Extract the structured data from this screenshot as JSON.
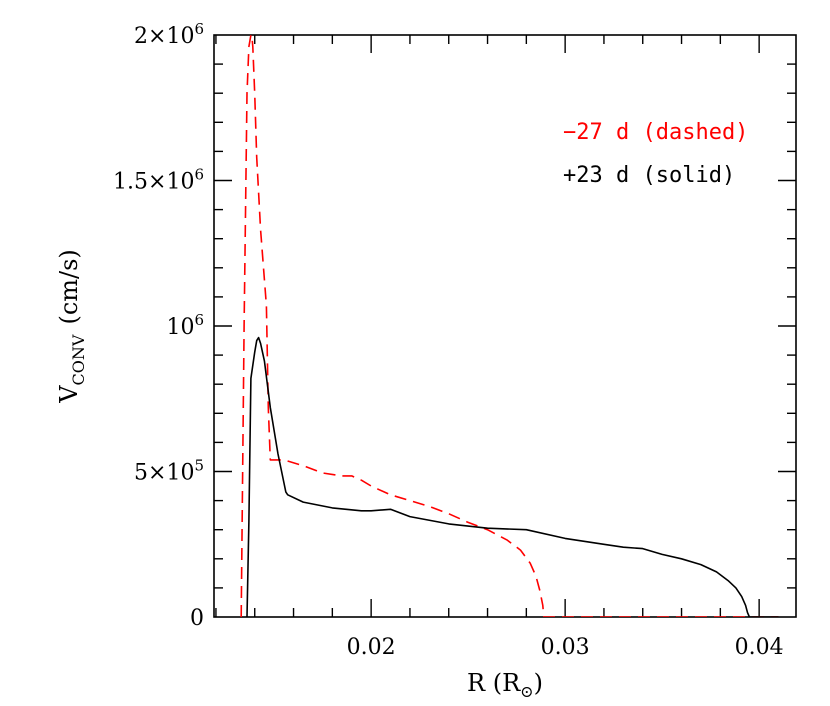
{
  "chart_data": {
    "type": "line",
    "title": "",
    "xlabel": "R (R",
    "xlabel_sub": "⊙",
    "xlabel_close": ")",
    "ylabel": "V",
    "ylabel_sub": "CONV",
    "ylabel_unit": "(cm/s)",
    "xlim": [
      0.0119,
      0.0419
    ],
    "ylim": [
      0,
      2000000
    ],
    "x_ticks": [
      {
        "value": 0.02,
        "label": "0.02"
      },
      {
        "value": 0.03,
        "label": "0.03"
      },
      {
        "value": 0.04,
        "label": "0.04"
      }
    ],
    "y_ticks": [
      {
        "value": 0,
        "label": "0",
        "mantissa": "",
        "exp": ""
      },
      {
        "value": 500000,
        "label": "5×10",
        "exp": "5"
      },
      {
        "value": 1000000,
        "label": "10",
        "exp": "6"
      },
      {
        "value": 1500000,
        "label": "1.5×10",
        "exp": "6"
      },
      {
        "value": 2000000,
        "label": "2×10",
        "exp": "6"
      }
    ],
    "grid": false,
    "legend_position": "top-right",
    "series": [
      {
        "name": "−27 d (dashed)",
        "color": "#ff0000",
        "dash": true,
        "x": [
          0.0133,
          0.01345,
          0.0136,
          0.0137,
          0.0138,
          0.01385,
          0.0139,
          0.014,
          0.0141,
          0.0143,
          0.0146,
          0.0147,
          0.0148,
          0.0155,
          0.0165,
          0.0175,
          0.0185,
          0.019,
          0.0195,
          0.02,
          0.021,
          0.022,
          0.023,
          0.024,
          0.025,
          0.026,
          0.027,
          0.0277,
          0.0282,
          0.0285,
          0.0287,
          0.02885,
          0.0289,
          0.0295,
          0.035,
          0.041
        ],
        "y": [
          0,
          1000000,
          1800000,
          1960000,
          2000000,
          2000000,
          1960000,
          1800000,
          1580000,
          1330000,
          1070000,
          720000,
          540000,
          540000,
          520000,
          495000,
          485000,
          485000,
          470000,
          450000,
          420000,
          400000,
          380000,
          355000,
          325000,
          300000,
          265000,
          230000,
          185000,
          140000,
          90000,
          40000,
          0,
          0,
          0,
          0
        ]
      },
      {
        "name": "+23 d (solid)",
        "color": "#000000",
        "dash": false,
        "x": [
          0.0136,
          0.0137,
          0.0138,
          0.014,
          0.0141,
          0.0142,
          0.0143,
          0.0145,
          0.0148,
          0.0152,
          0.0156,
          0.0157,
          0.0165,
          0.018,
          0.0195,
          0.02,
          0.021,
          0.022,
          0.024,
          0.026,
          0.028,
          0.03,
          0.032,
          0.033,
          0.034,
          0.035,
          0.036,
          0.037,
          0.0378,
          0.0384,
          0.0388,
          0.0391,
          0.0393,
          0.0394,
          0.0395,
          0.041
        ],
        "y": [
          0,
          330000,
          820000,
          910000,
          950000,
          960000,
          940000,
          880000,
          720000,
          560000,
          430000,
          420000,
          395000,
          375000,
          365000,
          365000,
          370000,
          345000,
          320000,
          305000,
          300000,
          270000,
          250000,
          240000,
          235000,
          215000,
          200000,
          180000,
          155000,
          125000,
          100000,
          70000,
          40000,
          15000,
          0,
          0
        ]
      }
    ]
  }
}
